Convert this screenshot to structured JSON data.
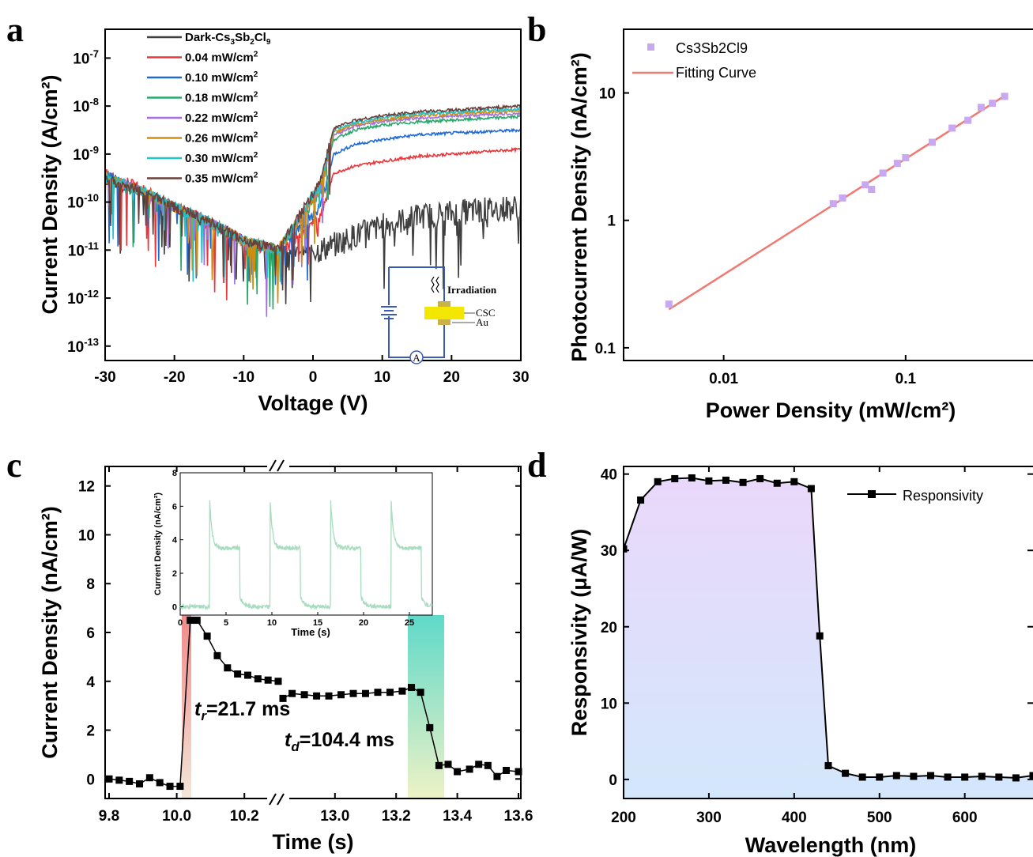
{
  "chart_data": [
    {
      "panel": "a",
      "type": "line",
      "xlabel": "Voltage (V)",
      "ylabel": "Current Density (A/cm²)",
      "xlim": [
        -30,
        30
      ],
      "ylim_log10": [
        -13.3,
        -6.4
      ],
      "x_ticks": [
        "-30",
        "-20",
        "-10",
        "0",
        "10",
        "20",
        "30"
      ],
      "y_ticks_exp": [
        "-7",
        "-8",
        "-9",
        "-10",
        "-11",
        "-12",
        "-13"
      ],
      "y_tick_base": "10",
      "legend_placement": "top-center",
      "series": [
        {
          "name": "Dark-Cs3Sb2Cl9",
          "color": "#404040",
          "log_j": [
            -9.6,
            -9.8,
            -10.1,
            -10.5,
            -10.8,
            -11.0,
            -11.0,
            -10.9,
            -10.7,
            -10.5,
            -10.3,
            -10.2,
            -10.1
          ]
        },
        {
          "name": "0.04 mW/cm2",
          "color": "#e8363b",
          "log_j": [
            -9.4,
            -9.7,
            -10.1,
            -10.4,
            -10.8,
            -11.1,
            -10.3,
            -9.4,
            -9.25,
            -9.15,
            -9.05,
            -8.98,
            -8.9
          ]
        },
        {
          "name": "0.10 mW/cm2",
          "color": "#1f6ad5",
          "log_j": [
            -9.45,
            -9.75,
            -10.1,
            -10.4,
            -10.8,
            -11.0,
            -10.1,
            -9.0,
            -8.8,
            -8.7,
            -8.6,
            -8.55,
            -8.5
          ]
        },
        {
          "name": "0.18 mW/cm2",
          "color": "#2aa86a",
          "log_j": [
            -9.5,
            -9.75,
            -10.1,
            -10.4,
            -10.8,
            -11.0,
            -9.8,
            -8.7,
            -8.5,
            -8.4,
            -8.33,
            -8.28,
            -8.22
          ]
        },
        {
          "name": "0.22 mW/cm2",
          "color": "#a56ee0",
          "log_j": [
            -9.5,
            -9.75,
            -10.1,
            -10.4,
            -10.8,
            -11.0,
            -9.7,
            -8.6,
            -8.42,
            -8.32,
            -8.25,
            -8.2,
            -8.15
          ]
        },
        {
          "name": "0.26 mW/cm2",
          "color": "#cf8d0f",
          "log_j": [
            -9.5,
            -9.75,
            -10.1,
            -10.4,
            -10.8,
            -11.0,
            -9.7,
            -8.55,
            -8.38,
            -8.28,
            -8.2,
            -8.15,
            -8.1
          ]
        },
        {
          "name": "0.30 mW/cm2",
          "color": "#25c2c7",
          "log_j": [
            -9.5,
            -9.75,
            -10.1,
            -10.4,
            -10.8,
            -11.0,
            -9.65,
            -8.5,
            -8.34,
            -8.24,
            -8.16,
            -8.11,
            -8.06
          ]
        },
        {
          "name": "0.35 mW/cm2",
          "color": "#6b3f3a",
          "log_j": [
            -9.5,
            -9.75,
            -10.1,
            -10.4,
            -10.8,
            -11.0,
            -9.6,
            -8.45,
            -8.3,
            -8.2,
            -8.12,
            -8.07,
            -8.0
          ]
        }
      ],
      "x": [
        -30,
        -25,
        -20,
        -15,
        -10,
        -5,
        1,
        3,
        6,
        10,
        15,
        22,
        30
      ],
      "inset": {
        "label_irradiation": "Irradiation",
        "label_csc": "CSC",
        "label_au": "Au",
        "meter_symbol": "A"
      }
    },
    {
      "panel": "b",
      "type": "scatter",
      "xlabel": "Power Density (mW/cm²)",
      "ylabel": "Photocurrent Density (nA/cm²)",
      "xlim_log10": [
        -2.55,
        -0.3
      ],
      "ylim_log10": [
        -1.1,
        1.5
      ],
      "x_ticks": [
        "0.01",
        "0.1"
      ],
      "y_ticks": [
        "0.1",
        "1",
        "10"
      ],
      "legend_placement": "top-left",
      "series": [
        {
          "name": "Cs3Sb2Cl9",
          "color": "#c8a8f0",
          "x": [
            0.005,
            0.04,
            0.045,
            0.06,
            0.065,
            0.075,
            0.09,
            0.1,
            0.14,
            0.18,
            0.22,
            0.26,
            0.3,
            0.35
          ],
          "y": [
            0.22,
            1.35,
            1.5,
            1.9,
            1.75,
            2.35,
            2.8,
            3.1,
            4.1,
            5.3,
            6.1,
            7.7,
            8.3,
            9.4
          ]
        },
        {
          "name": "Fitting Curve",
          "color": "#f07a70",
          "x": [
            0.005,
            0.35
          ],
          "y": [
            0.2,
            9.5
          ]
        }
      ]
    },
    {
      "panel": "c",
      "type": "line",
      "xlabel": "Time (s)",
      "ylabel": "Current Density (nA/cm²)",
      "x_ticks": [
        "9.8",
        "10.0",
        "10.2",
        "13.0",
        "13.2",
        "13.4",
        "13.6"
      ],
      "y_ticks": [
        "0",
        "2",
        "4",
        "6",
        "8",
        "10",
        "12"
      ],
      "ylim": [
        -0.8,
        12.8
      ],
      "annotations": {
        "tr_sub": "r",
        "tr_val": "=21.7 ms",
        "td_sub": "d",
        "td_val": "=104.4 ms",
        "t": "t"
      },
      "segment1": {
        "x": [
          9.8,
          9.83,
          9.86,
          9.89,
          9.92,
          9.95,
          9.98,
          10.01,
          10.04,
          10.06,
          10.09,
          10.12,
          10.15,
          10.18,
          10.21,
          10.24,
          10.27,
          10.3
        ],
        "y": [
          0,
          -0.05,
          -0.1,
          -0.2,
          0.05,
          -0.15,
          -0.3,
          -0.3,
          6.5,
          6.5,
          5.85,
          5.05,
          4.55,
          4.3,
          4.25,
          4.1,
          4.05,
          4.0
        ]
      },
      "segment2": {
        "x": [
          12.83,
          12.86,
          12.9,
          12.94,
          12.98,
          13.02,
          13.06,
          13.1,
          13.14,
          13.18,
          13.22,
          13.25,
          13.28,
          13.31,
          13.34,
          13.37,
          13.4,
          13.44,
          13.47,
          13.5,
          13.53,
          13.56,
          13.6
        ],
        "y": [
          3.3,
          3.5,
          3.45,
          3.4,
          3.4,
          3.45,
          3.5,
          3.5,
          3.55,
          3.55,
          3.6,
          3.75,
          3.55,
          2.1,
          0.55,
          0.6,
          0.3,
          0.4,
          0.6,
          0.55,
          0.1,
          0.35,
          0.3
        ]
      },
      "inset": {
        "xlabel": "Time (s)",
        "ylabel": "Current Density (nA/cm²)",
        "x_ticks": [
          "0",
          "5",
          "10",
          "15",
          "20",
          "25"
        ],
        "y_ticks": [
          "0",
          "2",
          "4",
          "6",
          "8"
        ],
        "xlim": [
          0,
          27.5
        ],
        "ylim": [
          -0.5,
          8
        ],
        "color": "#a8dcc0"
      }
    },
    {
      "panel": "d",
      "type": "line",
      "xlabel": "Wavelength (nm)",
      "ylabel": "Responsivity (μA/W)",
      "xlim": [
        200,
        680
      ],
      "ylim": [
        -2.5,
        41
      ],
      "x_ticks": [
        "200",
        "300",
        "400",
        "500",
        "600"
      ],
      "y_ticks": [
        "0",
        "10",
        "20",
        "30",
        "40"
      ],
      "legend_placement": "top-right",
      "series": [
        {
          "name": "Responsivity",
          "color": "#000000",
          "x": [
            200,
            220,
            240,
            260,
            280,
            300,
            320,
            340,
            360,
            380,
            400,
            420,
            430,
            440,
            460,
            480,
            500,
            520,
            540,
            560,
            580,
            600,
            620,
            640,
            660,
            680
          ],
          "y": [
            30.2,
            36.6,
            39.0,
            39.4,
            39.5,
            39.1,
            39.2,
            38.9,
            39.4,
            38.8,
            39.0,
            38.1,
            18.8,
            1.8,
            0.8,
            0.3,
            0.3,
            0.5,
            0.4,
            0.5,
            0.3,
            0.3,
            0.4,
            0.3,
            0.2,
            0.5
          ]
        }
      ]
    }
  ],
  "panel_letters": {
    "a": "a",
    "b": "b",
    "c": "c",
    "d": "d"
  }
}
